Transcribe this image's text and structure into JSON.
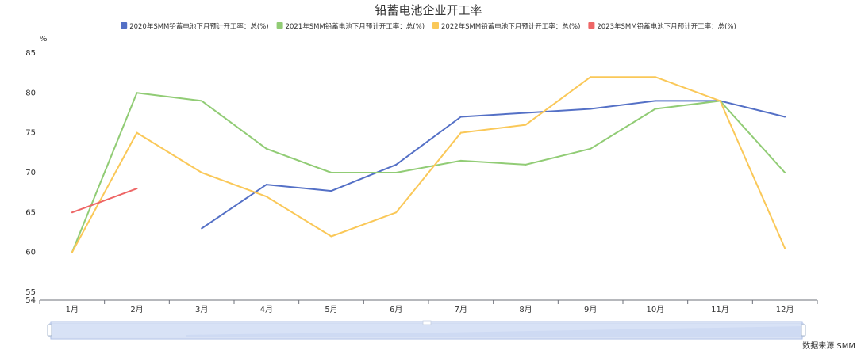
{
  "chart_data": {
    "type": "line",
    "title": "铅蓄电池企业开工率",
    "ylabel": "%",
    "ylim": [
      54,
      85
    ],
    "yticks": [
      54,
      55,
      60,
      65,
      70,
      75,
      80,
      85
    ],
    "categories": [
      "1月",
      "2月",
      "3月",
      "4月",
      "5月",
      "6月",
      "7月",
      "8月",
      "9月",
      "10月",
      "11月",
      "12月"
    ],
    "series": [
      {
        "name": "2020年SMM铅蓄电池下月预计开工率：总(%)",
        "color": "#5470c6",
        "values": [
          null,
          null,
          63,
          68.5,
          67.7,
          71,
          77,
          77.5,
          78,
          79,
          79,
          77
        ]
      },
      {
        "name": "2021年SMM铅蓄电池下月预计开工率：总(%)",
        "color": "#91cc75",
        "values": [
          60,
          80,
          79,
          73,
          70,
          70,
          71.5,
          71,
          73,
          78,
          79,
          70
        ]
      },
      {
        "name": "2022年SMM铅蓄电池下月预计开工率：总(%)",
        "color": "#fac858",
        "values": [
          60,
          75,
          70,
          67,
          62,
          65,
          75,
          76,
          82,
          82,
          79,
          60.5
        ]
      },
      {
        "name": "2023年SMM铅蓄电池下月预计开工率：总(%)",
        "color": "#ee6666",
        "values": [
          65,
          68,
          null,
          null,
          null,
          null,
          null,
          null,
          null,
          null,
          null,
          null
        ]
      }
    ],
    "legend_position": "top",
    "grid": false,
    "source": "数据来源 SMM"
  }
}
